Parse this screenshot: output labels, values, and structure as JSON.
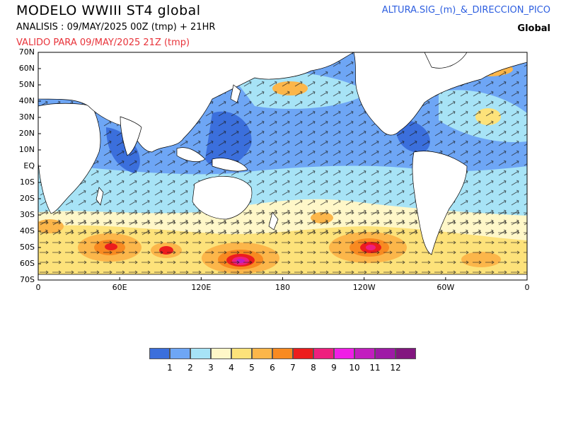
{
  "header": {
    "title": "MODELO  WWIII ST4 global",
    "analysis": "ANALISIS : 09/MAY/2025 00Z  (tmp) + 21HR",
    "valid": "VALIDO PARA  09/MAY/2025 21Z  (tmp)",
    "variable": "ALTURA.SIG_(m)_&_DIRECCION_PICO",
    "region": "Global"
  },
  "axes": {
    "lat_labels": [
      "70N",
      "60N",
      "50N",
      "40N",
      "30N",
      "20N",
      "10N",
      "EQ",
      "10S",
      "20S",
      "30S",
      "40S",
      "50S",
      "60S",
      "70S"
    ],
    "lon_labels": [
      "0",
      "60E",
      "120E",
      "180",
      "120W",
      "60W",
      "0"
    ]
  },
  "legend": {
    "colors": [
      "#3b6fdc",
      "#6ea6f5",
      "#a7e3f6",
      "#fff7c8",
      "#fde27a",
      "#fcb64a",
      "#f88a21",
      "#ec1d1d",
      "#ee1f7e",
      "#f01ee6",
      "#c21ebf",
      "#9e1aa6",
      "#82167f"
    ],
    "labels": [
      "1",
      "2",
      "3",
      "4",
      "5",
      "6",
      "7",
      "8",
      "9",
      "10",
      "11",
      "12"
    ]
  },
  "colors": {
    "land": "#ffffff",
    "ocean_base": "#6ea6f5",
    "accent_red": "#e8333a",
    "accent_blue": "#2e5fe0"
  }
}
